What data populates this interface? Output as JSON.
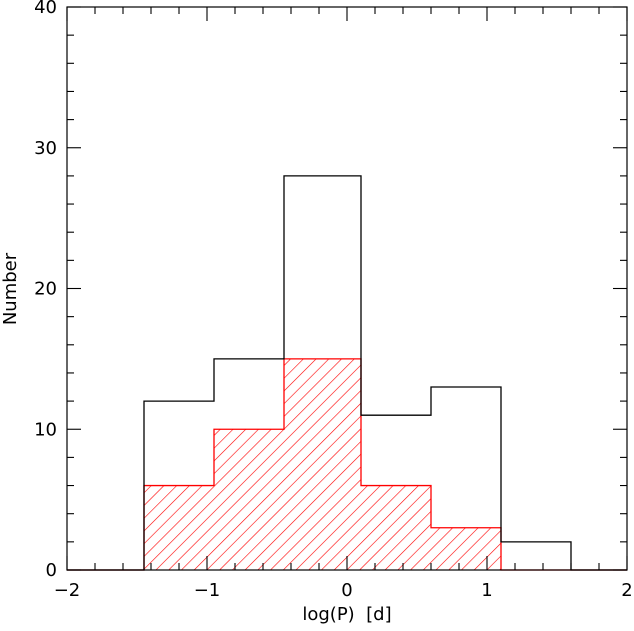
{
  "chart_data": {
    "type": "bar",
    "subtype": "step-histogram",
    "title": "",
    "xlabel": "log(P)  [d]",
    "ylabel": "Number",
    "xlim": [
      -2,
      2
    ],
    "ylim": [
      0,
      40
    ],
    "x_major_ticks": [
      -2,
      -1,
      0,
      1,
      2
    ],
    "x_minor_step": 0.2,
    "y_major_ticks": [
      0,
      10,
      20,
      30,
      40
    ],
    "y_minor_step": 2,
    "bin_edges": [
      -2.0,
      -1.45,
      -0.95,
      -0.45,
      0.1,
      0.6,
      1.1,
      1.6,
      2.0
    ],
    "grid": false,
    "legend": "none",
    "series": [
      {
        "style": "outline",
        "color": "#000000",
        "values": [
          0,
          12,
          15,
          28,
          11,
          13,
          2,
          0
        ]
      },
      {
        "style": "hatched",
        "color": "#ff0000",
        "values": [
          0,
          6,
          10,
          15,
          6,
          3,
          0,
          0
        ]
      }
    ]
  }
}
